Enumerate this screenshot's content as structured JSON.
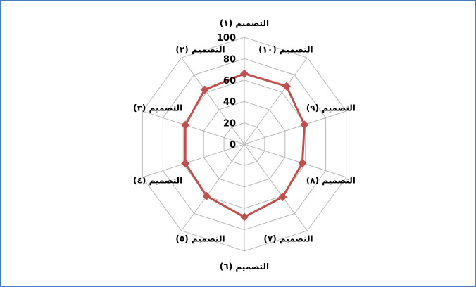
{
  "chart_data": {
    "type": "radar",
    "categories": [
      "التصميم (١)",
      "التصميم (١٠)",
      "التصميم (٩)",
      "التصميم (٨)",
      "التصميم (٧)",
      "التصميم (٦)",
      "التصميم (٥)",
      "التصميم (٤)",
      "التصميم (٣)",
      "التصميم (٢)"
    ],
    "series": [
      {
        "values": [
          66,
          67,
          59,
          57,
          61,
          68,
          60,
          58,
          58,
          63
        ]
      }
    ],
    "ylim": [
      0,
      100
    ],
    "yticks": [
      "0",
      "20",
      "40",
      "60",
      "80",
      "100"
    ],
    "grid": true,
    "legend": "none",
    "colors": {
      "series": "#c0504d",
      "grid": "#b8b8b8",
      "border": "#4a7ebb"
    }
  }
}
